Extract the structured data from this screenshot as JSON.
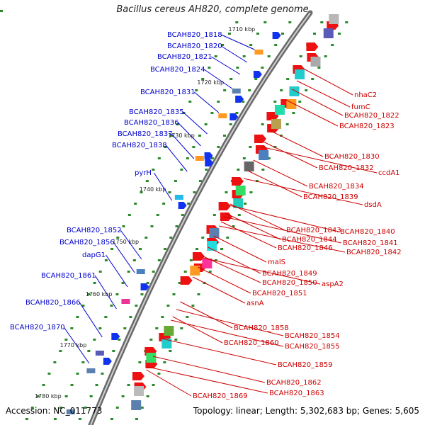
{
  "title": "Bacillus cereus AH820, complete genome",
  "footer": {
    "accession": "Accession: NC_011773",
    "topology": "Topology: linear; Length: 5,302,683 bp; Genes: 5,605"
  },
  "colors": {
    "left_label": "#0000cc",
    "right_label": "#cc0000",
    "backbone": "#888888"
  },
  "ticks": [
    "1710 kbp",
    "1720 kbp",
    "1730 kbp",
    "1740 kbp",
    "1750 kbp",
    "1760 kbp",
    "1770 kbp",
    "1780 kbp"
  ],
  "left_labels": [
    "BCAH820_1818",
    "BCAH820_1820",
    "BCAH820_1821",
    "BCAH820_1824",
    "BCAH820_1831",
    "BCAH820_1835",
    "BCAH820_1836",
    "BCAH820_1837",
    "BCAH820_1838",
    "pyrH",
    "BCAH820_1852",
    "BCAH820_1856",
    "dapG1",
    "BCAH820_1861",
    "BCAH820_1866",
    "BCAH820_1870"
  ],
  "right_labels": [
    "nhaC2",
    "fumC",
    "BCAH820_1822",
    "BCAH820_1823",
    "BCAH820_1830",
    "BCAH820_1832",
    "ccdA1",
    "BCAH820_1834",
    "BCAH820_1839",
    "dsdA",
    "BCAH820_1843",
    "BCAH820_1840",
    "BCAH820_1844",
    "BCAH820_1841",
    "BCAH820_1846",
    "BCAH820_1842",
    "malS",
    "BCAH820_1849",
    "BCAH820_1850",
    "aspA2",
    "BCAH820_1851",
    "asnA",
    "BCAH820_1858",
    "BCAH820_1854",
    "BCAH820_1860",
    "BCAH820_1855",
    "BCAH820_1859",
    "BCAH820_1862",
    "BCAH820_1863",
    "BCAH820_1869"
  ]
}
